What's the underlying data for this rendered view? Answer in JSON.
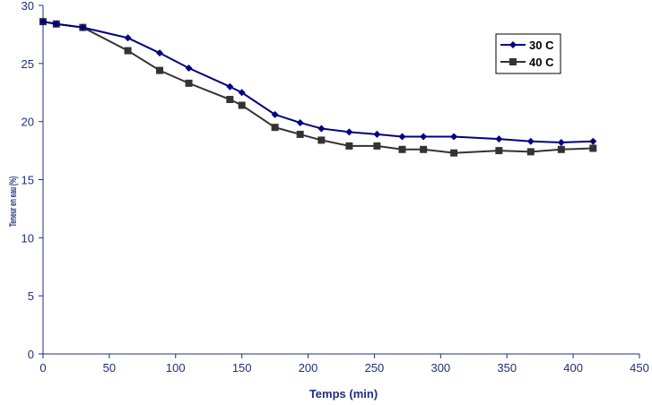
{
  "chart_data": {
    "type": "line",
    "title": "",
    "xlabel": "Temps (min)",
    "ylabel": "Teneur en eau (%)",
    "xlim": [
      0,
      450
    ],
    "ylim": [
      0,
      30
    ],
    "xticks": [
      "0",
      "50",
      "100",
      "150",
      "200",
      "250",
      "300",
      "350",
      "400",
      "450"
    ],
    "yticks": [
      "0",
      "5",
      "10",
      "15",
      "20",
      "25",
      "30"
    ],
    "grid": false,
    "legend_position": "top-right",
    "series": [
      {
        "name": "30  C",
        "color": "#000080",
        "marker": "diamond",
        "x": [
          0,
          10,
          30,
          64,
          88,
          110,
          141,
          150,
          175,
          194,
          210,
          231,
          252,
          271,
          287,
          310,
          344,
          368,
          391,
          415
        ],
        "y": [
          28.6,
          28.4,
          28.1,
          27.2,
          25.9,
          24.6,
          23.0,
          22.5,
          20.6,
          19.9,
          19.4,
          19.1,
          18.9,
          18.7,
          18.7,
          18.7,
          18.5,
          18.3,
          18.2,
          18.3
        ]
      },
      {
        "name": "40  C",
        "color": "#333333",
        "marker": "square",
        "x": [
          0,
          10,
          30,
          64,
          88,
          110,
          141,
          150,
          175,
          194,
          210,
          231,
          252,
          271,
          287,
          310,
          344,
          368,
          391,
          415
        ],
        "y": [
          28.6,
          28.4,
          28.1,
          26.1,
          24.4,
          23.3,
          21.9,
          21.4,
          19.5,
          18.9,
          18.4,
          17.9,
          17.9,
          17.6,
          17.6,
          17.3,
          17.5,
          17.4,
          17.6,
          17.7
        ]
      }
    ]
  }
}
